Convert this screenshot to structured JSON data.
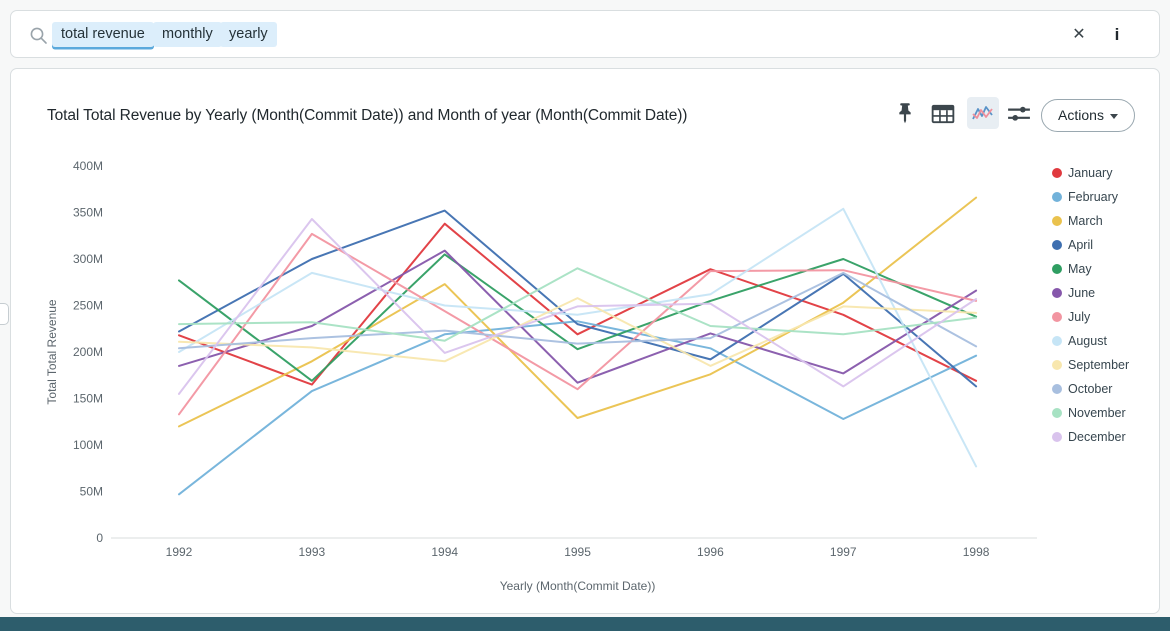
{
  "search": {
    "tokens": [
      "total revenue",
      "monthly",
      "yearly"
    ],
    "active_token_index": 0,
    "clear_glyph": "✕",
    "info_glyph": "i"
  },
  "card": {
    "title": "Total Total Revenue by Yearly (Month(Commit Date)) and Month of year (Month(Commit Date))",
    "actions_label": "Actions"
  },
  "chart_data": {
    "type": "line",
    "title": "Total Total Revenue by Yearly (Month(Commit Date)) and Month of year (Month(Commit Date))",
    "xlabel": "Yearly (Month(Commit Date))",
    "ylabel": "Total Total Revenue",
    "x": [
      1992,
      1993,
      1994,
      1995,
      1996,
      1997,
      1998
    ],
    "y_tick_labels": [
      "0",
      "50M",
      "100M",
      "150M",
      "200M",
      "250M",
      "300M",
      "350M",
      "400M"
    ],
    "ylim_millions": [
      0,
      400
    ],
    "values_unit": "millions of Total Total Revenue",
    "grid": false,
    "legend_position": "right",
    "series": [
      {
        "name": "January",
        "color": "#e0393e",
        "values": [
          218,
          165,
          338,
          219,
          289,
          240,
          169
        ]
      },
      {
        "name": "February",
        "color": "#72b2da",
        "values": [
          47,
          158,
          219,
          233,
          204,
          128,
          196
        ]
      },
      {
        "name": "March",
        "color": "#eac24d",
        "values": [
          120,
          190,
          273,
          129,
          176,
          253,
          366
        ]
      },
      {
        "name": "April",
        "color": "#3e6fb0",
        "values": [
          222,
          300,
          352,
          230,
          192,
          284,
          163
        ]
      },
      {
        "name": "May",
        "color": "#2f9e62",
        "values": [
          277,
          169,
          305,
          203,
          255,
          300,
          238
        ]
      },
      {
        "name": "June",
        "color": "#8657ab",
        "values": [
          185,
          228,
          309,
          167,
          220,
          177,
          266
        ]
      },
      {
        "name": "July",
        "color": "#f295a1",
        "values": [
          133,
          327,
          244,
          160,
          287,
          288,
          255
        ]
      },
      {
        "name": "August",
        "color": "#c6e5f6",
        "values": [
          200,
          285,
          250,
          240,
          262,
          354,
          77
        ]
      },
      {
        "name": "September",
        "color": "#f8e7ae",
        "values": [
          211,
          205,
          190,
          258,
          185,
          249,
          242
        ]
      },
      {
        "name": "October",
        "color": "#a8bfdf",
        "values": [
          204,
          215,
          223,
          209,
          215,
          285,
          206
        ]
      },
      {
        "name": "November",
        "color": "#a7e2c3",
        "values": [
          230,
          232,
          212,
          290,
          228,
          219,
          237
        ]
      },
      {
        "name": "December",
        "color": "#d9c3ed",
        "values": [
          155,
          343,
          199,
          249,
          252,
          163,
          257
        ]
      }
    ]
  }
}
